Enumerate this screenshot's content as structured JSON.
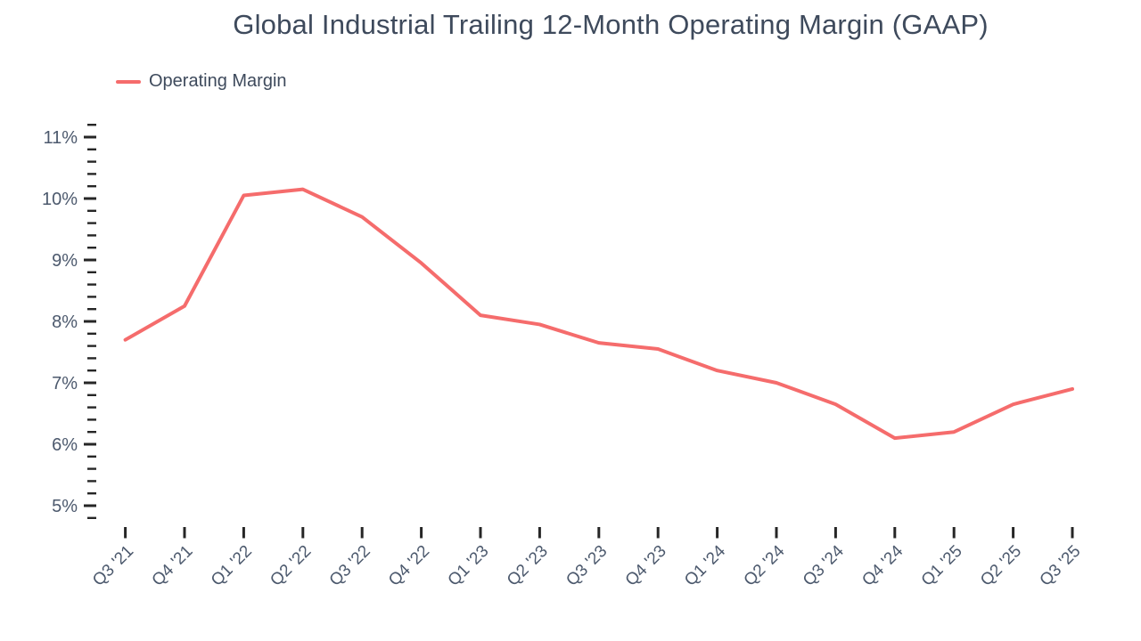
{
  "chart_data": {
    "type": "line",
    "title": "Global Industrial Trailing 12-Month Operating Margin (GAAP)",
    "categories": [
      "Q3 '21",
      "Q4 '21",
      "Q1 '22",
      "Q2 '22",
      "Q3 '22",
      "Q4 '22",
      "Q1 '23",
      "Q2 '23",
      "Q3 '23",
      "Q4 '23",
      "Q1 '24",
      "Q2 '24",
      "Q3 '24",
      "Q4 '24",
      "Q1 '25",
      "Q2 '25",
      "Q3 '25"
    ],
    "series": [
      {
        "name": "Operating Margin",
        "color": "#F56C6C",
        "values": [
          7.7,
          8.25,
          10.05,
          10.15,
          9.7,
          8.95,
          8.1,
          7.95,
          7.65,
          7.55,
          7.2,
          7.0,
          6.65,
          6.1,
          6.2,
          6.65,
          6.9
        ]
      }
    ],
    "xlabel": "",
    "ylabel": "",
    "unit": "%",
    "y_axis": {
      "tick_labels": [
        "5%",
        "6%",
        "7%",
        "8%",
        "9%",
        "10%",
        "11%"
      ],
      "major_ticks": [
        5,
        6,
        7,
        8,
        9,
        10,
        11
      ],
      "minor_tick_step": 0.2,
      "range": [
        4.8,
        11.2
      ]
    },
    "grid": false,
    "legend_position": "top-left"
  },
  "colors": {
    "line": "#F56C6C",
    "title_text": "#3E4A5C",
    "axis_label_text": "#4C596D",
    "tick": "#262626",
    "background": "#FFFFFF"
  }
}
